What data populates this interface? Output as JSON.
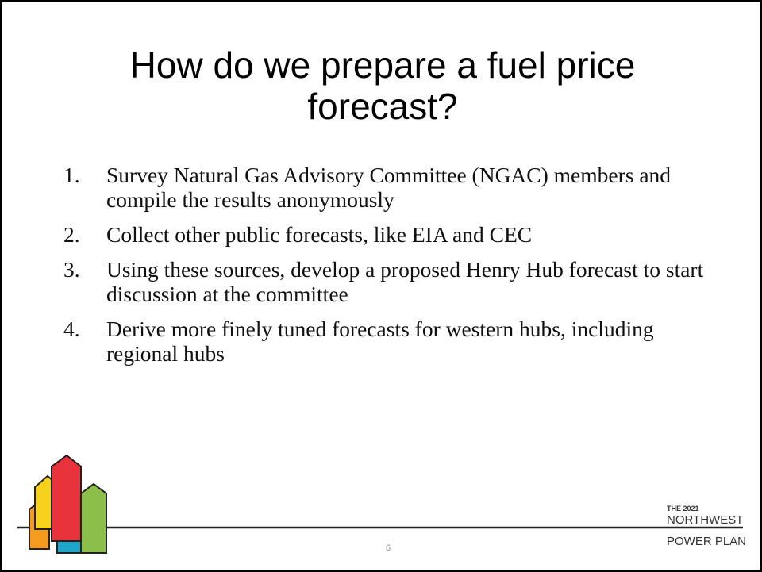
{
  "slide": {
    "title": "How do we prepare a fuel price forecast?",
    "items": [
      {
        "number": "1.",
        "text": "Survey Natural Gas Advisory Committee (NGAC) members and compile the results anonymously"
      },
      {
        "number": "2.",
        "text": "Collect other public forecasts, like EIA and CEC"
      },
      {
        "number": "3.",
        "text": "Using these sources, develop a proposed Henry Hub forecast to start discussion at the committee"
      },
      {
        "number": "4.",
        "text": "Derive more finely tuned forecasts for western hubs, including regional hubs"
      }
    ],
    "page_number": "6",
    "logo": {
      "line1": "THE 2021",
      "line2": "NORTHWEST",
      "line3": "POWER PLAN"
    }
  }
}
